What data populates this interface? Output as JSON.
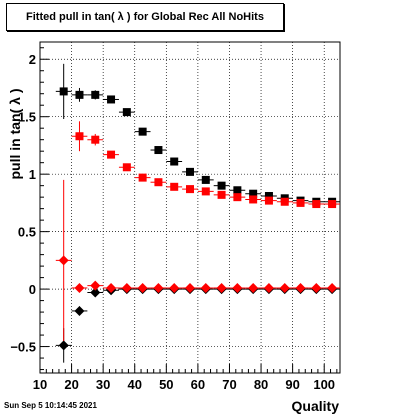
{
  "title": "Fitted pull in tan( λ ) for Global Rec All NoHits",
  "footer_date": "Sun Sep  5 10:14:45 2021",
  "chart_data": {
    "type": "scatter",
    "title": "Fitted pull in tan( λ ) for Global Rec All NoHits",
    "xlabel": "Quality",
    "ylabel": "pull in tan( λ )",
    "xlim": [
      10,
      105
    ],
    "ylim": [
      -0.73,
      2.15
    ],
    "grid": true,
    "x_ticks": [
      10,
      20,
      30,
      40,
      50,
      60,
      70,
      80,
      90,
      100
    ],
    "y_ticks": [
      -0.5,
      0,
      0.5,
      1,
      1.5,
      2
    ],
    "y_tick_labels": [
      "−0.5",
      "0",
      "0.5",
      "1",
      "1.5",
      "2"
    ],
    "series": [
      {
        "marker": "square",
        "color": "#000000",
        "points": [
          {
            "x": 17.5,
            "y": 1.72,
            "err": 0.24
          },
          {
            "x": 22.5,
            "y": 1.69,
            "err": 0.06
          },
          {
            "x": 27.5,
            "y": 1.69,
            "err": 0.04
          },
          {
            "x": 32.5,
            "y": 1.65,
            "err": 0.03
          },
          {
            "x": 37.5,
            "y": 1.54,
            "err": 0.03
          },
          {
            "x": 42.5,
            "y": 1.37,
            "err": 0.02
          },
          {
            "x": 47.5,
            "y": 1.21,
            "err": 0.02
          },
          {
            "x": 52.5,
            "y": 1.11,
            "err": 0.02
          },
          {
            "x": 57.5,
            "y": 1.02,
            "err": 0.02
          },
          {
            "x": 62.5,
            "y": 0.95,
            "err": 0.02
          },
          {
            "x": 67.5,
            "y": 0.9,
            "err": 0.02
          },
          {
            "x": 72.5,
            "y": 0.86,
            "err": 0.02
          },
          {
            "x": 77.5,
            "y": 0.83,
            "err": 0.02
          },
          {
            "x": 82.5,
            "y": 0.81,
            "err": 0.02
          },
          {
            "x": 87.5,
            "y": 0.79,
            "err": 0.02
          },
          {
            "x": 92.5,
            "y": 0.77,
            "err": 0.02
          },
          {
            "x": 97.5,
            "y": 0.76,
            "err": 0.02
          },
          {
            "x": 102.5,
            "y": 0.76,
            "err": 0.02
          }
        ]
      },
      {
        "marker": "square",
        "color": "#ff0000",
        "points": [
          {
            "x": 22.5,
            "y": 1.33,
            "err": 0.13
          },
          {
            "x": 27.5,
            "y": 1.3,
            "err": 0.05
          },
          {
            "x": 32.5,
            "y": 1.17,
            "err": 0.03
          },
          {
            "x": 37.5,
            "y": 1.06,
            "err": 0.03
          },
          {
            "x": 42.5,
            "y": 0.97,
            "err": 0.02
          },
          {
            "x": 47.5,
            "y": 0.93,
            "err": 0.02
          },
          {
            "x": 52.5,
            "y": 0.89,
            "err": 0.02
          },
          {
            "x": 57.5,
            "y": 0.87,
            "err": 0.02
          },
          {
            "x": 62.5,
            "y": 0.85,
            "err": 0.02
          },
          {
            "x": 67.5,
            "y": 0.82,
            "err": 0.02
          },
          {
            "x": 72.5,
            "y": 0.8,
            "err": 0.02
          },
          {
            "x": 77.5,
            "y": 0.78,
            "err": 0.02
          },
          {
            "x": 82.5,
            "y": 0.77,
            "err": 0.02
          },
          {
            "x": 87.5,
            "y": 0.76,
            "err": 0.02
          },
          {
            "x": 92.5,
            "y": 0.75,
            "err": 0.02
          },
          {
            "x": 97.5,
            "y": 0.74,
            "err": 0.02
          },
          {
            "x": 102.5,
            "y": 0.74,
            "err": 0.02
          }
        ]
      },
      {
        "marker": "diamond",
        "color": "#000000",
        "points": [
          {
            "x": 17.5,
            "y": -0.49,
            "err": 0.15
          },
          {
            "x": 22.5,
            "y": -0.19,
            "err": 0.04
          },
          {
            "x": 27.5,
            "y": -0.03,
            "err": 0.02
          },
          {
            "x": 32.5,
            "y": -0.01,
            "err": 0.01
          },
          {
            "x": 37.5,
            "y": 0.0,
            "err": 0.01
          },
          {
            "x": 42.5,
            "y": 0.0,
            "err": 0.01
          },
          {
            "x": 47.5,
            "y": 0.0,
            "err": 0.01
          },
          {
            "x": 52.5,
            "y": 0.0,
            "err": 0.01
          },
          {
            "x": 57.5,
            "y": 0.0,
            "err": 0.01
          },
          {
            "x": 62.5,
            "y": 0.0,
            "err": 0.01
          },
          {
            "x": 67.5,
            "y": 0.0,
            "err": 0.01
          },
          {
            "x": 72.5,
            "y": 0.0,
            "err": 0.01
          },
          {
            "x": 77.5,
            "y": 0.0,
            "err": 0.01
          },
          {
            "x": 82.5,
            "y": 0.0,
            "err": 0.01
          },
          {
            "x": 87.5,
            "y": 0.0,
            "err": 0.01
          },
          {
            "x": 92.5,
            "y": 0.0,
            "err": 0.01
          },
          {
            "x": 97.5,
            "y": 0.0,
            "err": 0.01
          },
          {
            "x": 102.5,
            "y": 0.0,
            "err": 0.01
          }
        ]
      },
      {
        "marker": "diamond",
        "color": "#ff0000",
        "points": [
          {
            "x": 17.5,
            "y": 0.25,
            "err": 0.7
          },
          {
            "x": 22.5,
            "y": 0.01,
            "err": 0.03
          },
          {
            "x": 27.5,
            "y": 0.03,
            "err": 0.02
          },
          {
            "x": 32.5,
            "y": 0.01,
            "err": 0.01
          },
          {
            "x": 37.5,
            "y": 0.01,
            "err": 0.01
          },
          {
            "x": 42.5,
            "y": 0.01,
            "err": 0.01
          },
          {
            "x": 47.5,
            "y": 0.01,
            "err": 0.01
          },
          {
            "x": 52.5,
            "y": 0.01,
            "err": 0.01
          },
          {
            "x": 57.5,
            "y": 0.01,
            "err": 0.01
          },
          {
            "x": 62.5,
            "y": 0.01,
            "err": 0.01
          },
          {
            "x": 67.5,
            "y": 0.01,
            "err": 0.01
          },
          {
            "x": 72.5,
            "y": 0.01,
            "err": 0.01
          },
          {
            "x": 77.5,
            "y": 0.01,
            "err": 0.01
          },
          {
            "x": 82.5,
            "y": 0.01,
            "err": 0.01
          },
          {
            "x": 87.5,
            "y": 0.01,
            "err": 0.01
          },
          {
            "x": 92.5,
            "y": 0.01,
            "err": 0.01
          },
          {
            "x": 97.5,
            "y": 0.01,
            "err": 0.01
          },
          {
            "x": 102.5,
            "y": 0.01,
            "err": 0.01
          }
        ]
      }
    ]
  }
}
